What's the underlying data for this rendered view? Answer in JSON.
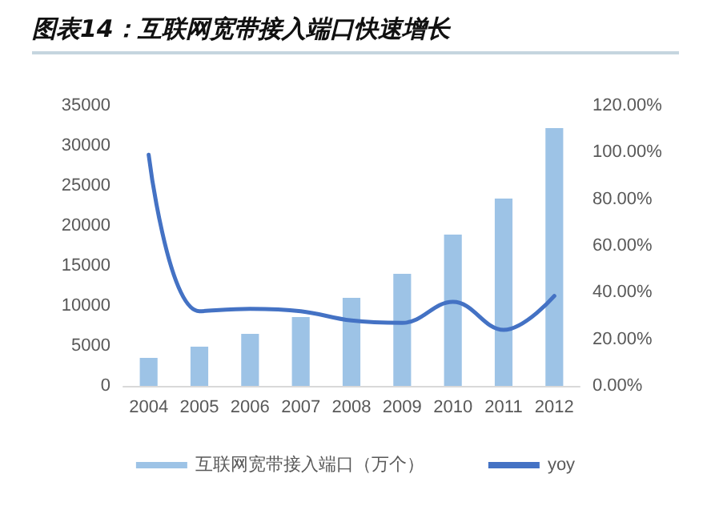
{
  "chart_data": {
    "type": "bar",
    "title": "图表14：互联网宽带接入端口快速增长",
    "categories": [
      "2004",
      "2005",
      "2006",
      "2007",
      "2008",
      "2009",
      "2010",
      "2011",
      "2012"
    ],
    "series": [
      {
        "name": "互联网宽带接入端口（万个）",
        "color": "#9dc3e6",
        "values": [
          3500,
          4900,
          6500,
          8600,
          11000,
          14000,
          18900,
          23400,
          32200
        ]
      },
      {
        "name": "yoy",
        "type": "line",
        "axis": "y2",
        "color": "#4472c4",
        "marker": "none",
        "values": [
          99,
          32,
          33,
          32,
          28,
          27,
          36,
          24,
          38.5
        ]
      }
    ],
    "ylim": [
      0,
      35000
    ],
    "yticks": [
      0,
      5000,
      10000,
      15000,
      20000,
      25000,
      30000,
      35000
    ],
    "y2lim": [
      0,
      120
    ],
    "y2ticks": [
      {
        "value": 0,
        "label": "0.00%"
      },
      {
        "value": 20,
        "label": "20.00%"
      },
      {
        "value": 40,
        "label": "40.00%"
      },
      {
        "value": 60,
        "label": "60.00%"
      },
      {
        "value": 80,
        "label": "80.00%"
      },
      {
        "value": 100,
        "label": "100.00%"
      },
      {
        "value": 120,
        "label": "120.00%"
      }
    ],
    "grid": false,
    "legend": "bottom"
  }
}
